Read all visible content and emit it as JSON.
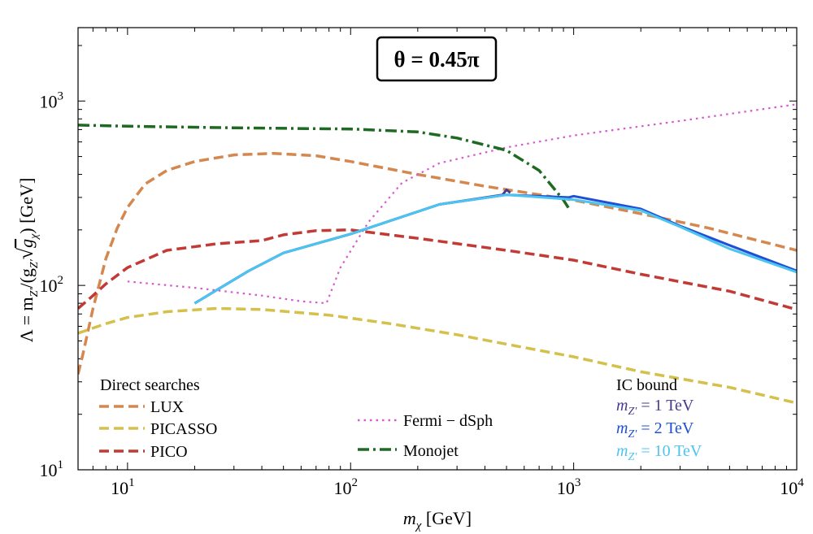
{
  "chart_data": {
    "type": "line",
    "title": "θ = 0.45π",
    "xlabel": {
      "prefix": "m",
      "sub": "χ",
      "suffix": " [GeV]"
    },
    "ylabel": {
      "text": "Λ = m",
      "sub1": "Z′",
      "mid": "/(g",
      "sub2": "Z′",
      "root": "g",
      "sub3": "χ",
      "end": ") [GeV]"
    },
    "x_scale": "log",
    "y_scale": "log",
    "xlim": [
      6,
      10000
    ],
    "ylim": [
      10,
      2500
    ],
    "x_ticks": [
      {
        "value": 10,
        "base": "10",
        "exp": "1"
      },
      {
        "value": 100,
        "base": "10",
        "exp": "2"
      },
      {
        "value": 1000,
        "base": "10",
        "exp": "3"
      },
      {
        "value": 10000,
        "base": "10",
        "exp": "4"
      }
    ],
    "y_ticks": [
      {
        "value": 10,
        "base": "10",
        "exp": "1"
      },
      {
        "value": 100,
        "base": "10",
        "exp": "2"
      },
      {
        "value": 1000,
        "base": "10",
        "exp": "3"
      }
    ],
    "series": [
      {
        "name": "LUX",
        "group": "direct",
        "color": "#d4884f",
        "dash": "dashed",
        "points": [
          [
            6,
            33
          ],
          [
            6.3,
            42
          ],
          [
            7,
            75
          ],
          [
            8,
            140
          ],
          [
            9,
            205
          ],
          [
            10,
            265
          ],
          [
            12,
            355
          ],
          [
            15,
            420
          ],
          [
            20,
            470
          ],
          [
            30,
            510
          ],
          [
            45,
            520
          ],
          [
            70,
            505
          ],
          [
            100,
            470
          ],
          [
            200,
            400
          ],
          [
            400,
            345
          ],
          [
            1000,
            290
          ],
          [
            2000,
            245
          ],
          [
            4000,
            205
          ],
          [
            10000,
            155
          ]
        ]
      },
      {
        "name": "PICASSO",
        "group": "direct",
        "color": "#d4c04a",
        "dash": "dashed",
        "points": [
          [
            6,
            55
          ],
          [
            8,
            62
          ],
          [
            10,
            67
          ],
          [
            15,
            72
          ],
          [
            25,
            75
          ],
          [
            40,
            74
          ],
          [
            80,
            69
          ],
          [
            150,
            62
          ],
          [
            300,
            54
          ],
          [
            600,
            46
          ],
          [
            1000,
            41
          ],
          [
            2000,
            34
          ],
          [
            5000,
            28
          ],
          [
            10000,
            23
          ]
        ]
      },
      {
        "name": "PICO",
        "group": "direct",
        "color": "#c23a36",
        "dash": "dashed",
        "points": [
          [
            6,
            75
          ],
          [
            7,
            88
          ],
          [
            8,
            102
          ],
          [
            10,
            125
          ],
          [
            15,
            155
          ],
          [
            25,
            168
          ],
          [
            40,
            175
          ],
          [
            50,
            188
          ],
          [
            70,
            198
          ],
          [
            100,
            200
          ],
          [
            200,
            180
          ],
          [
            500,
            155
          ],
          [
            1000,
            137
          ],
          [
            2000,
            115
          ],
          [
            5000,
            93
          ],
          [
            10000,
            74
          ]
        ]
      },
      {
        "name": "Fermi − dSph",
        "group": "other",
        "color": "#d85ad0",
        "dash": "dotted",
        "points": [
          [
            10,
            105
          ],
          [
            20,
            97
          ],
          [
            40,
            88
          ],
          [
            60,
            82
          ],
          [
            78,
            80
          ],
          [
            90,
            125
          ],
          [
            120,
            220
          ],
          [
            170,
            360
          ],
          [
            250,
            460
          ],
          [
            500,
            560
          ],
          [
            1000,
            650
          ],
          [
            3000,
            780
          ],
          [
            10000,
            960
          ]
        ]
      },
      {
        "name": "Monojet",
        "group": "other",
        "color": "#1f6a23",
        "dash": "dashdot",
        "points": [
          [
            6,
            740
          ],
          [
            10,
            730
          ],
          [
            30,
            715
          ],
          [
            100,
            705
          ],
          [
            200,
            680
          ],
          [
            300,
            630
          ],
          [
            500,
            540
          ],
          [
            700,
            420
          ],
          [
            900,
            290
          ],
          [
            950,
            262
          ]
        ]
      },
      {
        "name": "1 TeV",
        "group": "ic",
        "color": "#4a3a8c",
        "dash": "solid",
        "points": [
          [
            20,
            80
          ],
          [
            35,
            120
          ],
          [
            50,
            150
          ],
          [
            100,
            190
          ],
          [
            250,
            275
          ],
          [
            480,
            310
          ],
          [
            500,
            330
          ],
          [
            520,
            318
          ]
        ]
      },
      {
        "name": "2 TeV",
        "group": "ic",
        "color": "#1f4fd6",
        "dash": "solid",
        "points": [
          [
            20,
            80
          ],
          [
            35,
            120
          ],
          [
            50,
            150
          ],
          [
            100,
            190
          ],
          [
            250,
            275
          ],
          [
            500,
            310
          ],
          [
            950,
            300
          ],
          [
            1000,
            305
          ],
          [
            2000,
            260
          ],
          [
            3000,
            210
          ],
          [
            5000,
            165
          ],
          [
            10000,
            120
          ]
        ]
      },
      {
        "name": "10 TeV",
        "group": "ic",
        "color": "#4cc4f0",
        "dash": "solid",
        "points": [
          [
            20,
            80
          ],
          [
            35,
            120
          ],
          [
            50,
            150
          ],
          [
            100,
            190
          ],
          [
            250,
            275
          ],
          [
            500,
            310
          ],
          [
            1000,
            292
          ],
          [
            2000,
            255
          ],
          [
            3000,
            208
          ],
          [
            5000,
            158
          ],
          [
            10000,
            118
          ]
        ]
      }
    ],
    "legend": {
      "direct_title": "Direct searches",
      "ic_title": "IC bound",
      "ic_label_prefix": "m",
      "ic_label_sub": "Z′",
      "ic_label_eq": " = "
    },
    "grid": false
  }
}
